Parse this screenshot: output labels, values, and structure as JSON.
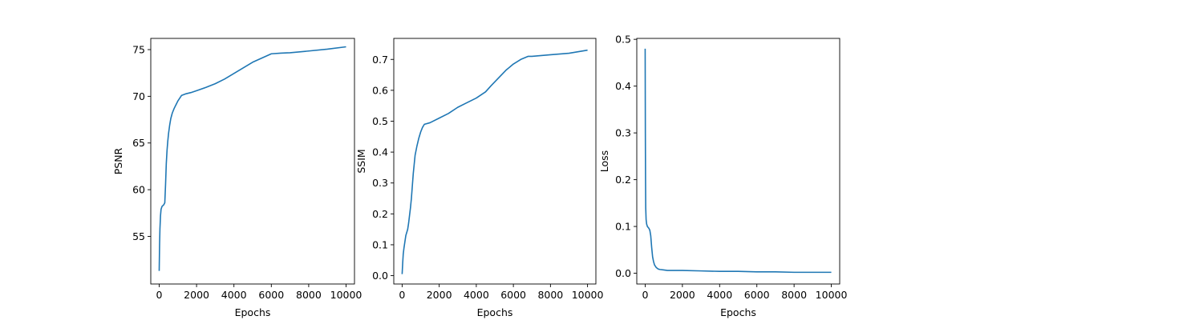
{
  "colors": {
    "line": "#1f77b4",
    "axes": "#000000",
    "background": "#ffffff"
  },
  "chart_data": [
    {
      "type": "line",
      "title": "",
      "xlabel": "Epochs",
      "ylabel": "PSNR",
      "xlim": [
        -450,
        10450
      ],
      "ylim": [
        49.9,
        76.2
      ],
      "xticks": [
        0,
        2000,
        4000,
        6000,
        8000,
        10000
      ],
      "yticks": [
        55,
        60,
        65,
        70,
        75
      ],
      "ytick_labels": [
        "55",
        "60",
        "65",
        "70",
        "75"
      ],
      "grid": false,
      "series": [
        {
          "x": [
            0,
            20,
            40,
            70,
            100,
            150,
            200,
            250,
            300,
            340,
            380,
            420,
            460,
            500,
            560,
            620,
            700,
            800,
            900,
            1000,
            1100,
            1200,
            1400,
            1700,
            2000,
            2500,
            3000,
            3500,
            4000,
            4500,
            5000,
            5500,
            6000,
            6500,
            6850,
            7000,
            8000,
            9000,
            10000
          ],
          "y": [
            51.3,
            54.0,
            55.8,
            57.2,
            57.9,
            58.2,
            58.3,
            58.4,
            58.6,
            60.5,
            62.8,
            64.2,
            65.2,
            66.0,
            66.9,
            67.6,
            68.2,
            68.7,
            69.1,
            69.5,
            69.8,
            70.1,
            70.25,
            70.4,
            70.6,
            70.95,
            71.35,
            71.85,
            72.45,
            73.05,
            73.65,
            74.1,
            74.55,
            74.62,
            74.65,
            74.66,
            74.85,
            75.05,
            75.3
          ]
        }
      ]
    },
    {
      "type": "line",
      "title": "",
      "xlabel": "Epochs",
      "ylabel": "SSIM",
      "xlim": [
        -450,
        10450
      ],
      "ylim": [
        -0.027,
        0.768
      ],
      "xticks": [
        0,
        2000,
        4000,
        6000,
        8000,
        10000
      ],
      "yticks": [
        0.0,
        0.1,
        0.2,
        0.3,
        0.4,
        0.5,
        0.6,
        0.7
      ],
      "ytick_labels": [
        "0.0",
        "0.1",
        "0.2",
        "0.3",
        "0.4",
        "0.5",
        "0.6",
        "0.7"
      ],
      "grid": false,
      "series": [
        {
          "x": [
            0,
            30,
            60,
            100,
            150,
            200,
            250,
            300,
            350,
            400,
            450,
            500,
            550,
            600,
            650,
            700,
            800,
            900,
            1000,
            1100,
            1200,
            1500,
            2000,
            2500,
            3000,
            3500,
            4000,
            4500,
            4800,
            5200,
            5600,
            6000,
            6400,
            6800,
            7000,
            8000,
            9000,
            10000
          ],
          "y": [
            0.005,
            0.04,
            0.07,
            0.09,
            0.11,
            0.13,
            0.14,
            0.15,
            0.17,
            0.195,
            0.22,
            0.25,
            0.29,
            0.33,
            0.36,
            0.39,
            0.42,
            0.445,
            0.465,
            0.48,
            0.49,
            0.495,
            0.51,
            0.525,
            0.545,
            0.56,
            0.575,
            0.595,
            0.615,
            0.64,
            0.665,
            0.685,
            0.7,
            0.71,
            0.71,
            0.715,
            0.72,
            0.73
          ]
        }
      ]
    },
    {
      "type": "line",
      "title": "",
      "xlabel": "Epochs",
      "ylabel": "Loss",
      "xlim": [
        -450,
        10450
      ],
      "ylim": [
        -0.023,
        0.502
      ],
      "xticks": [
        0,
        2000,
        4000,
        6000,
        8000,
        10000
      ],
      "yticks": [
        0.0,
        0.1,
        0.2,
        0.3,
        0.4,
        0.5
      ],
      "ytick_labels": [
        "0.0",
        "0.1",
        "0.2",
        "0.3",
        "0.4",
        "0.5"
      ],
      "grid": false,
      "series": [
        {
          "x": [
            0,
            10,
            20,
            30,
            50,
            80,
            120,
            160,
            200,
            250,
            300,
            350,
            400,
            450,
            500,
            600,
            700,
            800,
            1000,
            1200,
            1500,
            2000,
            3000,
            4000,
            5000,
            6000,
            7000,
            8000,
            9000,
            10000
          ],
          "y": [
            0.48,
            0.3,
            0.2,
            0.14,
            0.115,
            0.105,
            0.1,
            0.098,
            0.096,
            0.092,
            0.08,
            0.055,
            0.035,
            0.025,
            0.018,
            0.012,
            0.009,
            0.008,
            0.007,
            0.006,
            0.006,
            0.006,
            0.005,
            0.004,
            0.004,
            0.003,
            0.003,
            0.002,
            0.002,
            0.002
          ]
        }
      ]
    }
  ]
}
